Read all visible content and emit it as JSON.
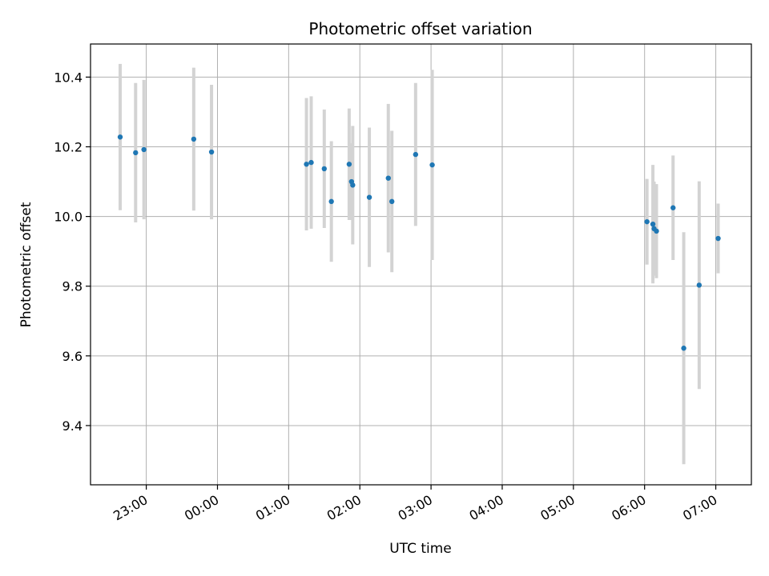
{
  "chart_data": {
    "type": "scatter",
    "title": "Photometric offset variation",
    "xlabel": "UTC time",
    "ylabel": "Photometric offset",
    "x_unit": "UTC",
    "x_tick_labels": [
      "23:00",
      "00:00",
      "01:00",
      "02:00",
      "03:00",
      "04:00",
      "05:00",
      "06:00",
      "07:00"
    ],
    "x_ticks": [
      "23:00",
      "24:00",
      "25:00",
      "26:00",
      "27:00",
      "28:00",
      "29:00",
      "30:00",
      "31:00"
    ],
    "xlim": [
      "22:13",
      "31:30"
    ],
    "y_ticks": [
      9.4,
      9.6,
      9.8,
      10.0,
      10.2,
      10.4
    ],
    "y_tick_labels": [
      "9.4",
      "9.6",
      "9.8",
      "10.0",
      "10.2",
      "10.4"
    ],
    "ylim": [
      9.23,
      10.495
    ],
    "grid": true,
    "point_color": "#1f77b4",
    "errorbar_color": "#d3d3d3",
    "series": [
      {
        "points": [
          {
            "x": "22:38",
            "y": 10.228,
            "err": 0.21
          },
          {
            "x": "22:51",
            "y": 10.183,
            "err": 0.2
          },
          {
            "x": "22:58",
            "y": 10.192,
            "err": 0.2
          },
          {
            "x": "23:40",
            "y": 10.222,
            "err": 0.205
          },
          {
            "x": "23:55",
            "y": 10.185,
            "err": 0.193
          },
          {
            "x": "25:15",
            "y": 10.15,
            "err": 0.19
          },
          {
            "x": "25:19",
            "y": 10.155,
            "err": 0.19
          },
          {
            "x": "25:30",
            "y": 10.137,
            "err": 0.17
          },
          {
            "x": "25:36",
            "y": 10.043,
            "err": 0.173
          },
          {
            "x": "25:51",
            "y": 10.15,
            "err": 0.16
          },
          {
            "x": "25:53",
            "y": 10.1,
            "err": 0.11
          },
          {
            "x": "25:54",
            "y": 10.09,
            "err": 0.17
          },
          {
            "x": "26:08",
            "y": 10.055,
            "err": 0.2
          },
          {
            "x": "26:24",
            "y": 10.11,
            "err": 0.213
          },
          {
            "x": "26:27",
            "y": 10.043,
            "err": 0.203
          },
          {
            "x": "26:47",
            "y": 10.178,
            "err": 0.205
          },
          {
            "x": "27:01",
            "y": 10.148,
            "err": 0.273
          },
          {
            "x": "30:02",
            "y": 9.985,
            "err": 0.123
          },
          {
            "x": "30:07",
            "y": 9.978,
            "err": 0.17
          },
          {
            "x": "30:08",
            "y": 9.965,
            "err": 0.135
          },
          {
            "x": "30:10",
            "y": 9.958,
            "err": 0.135
          },
          {
            "x": "30:24",
            "y": 10.025,
            "err": 0.15
          },
          {
            "x": "30:33",
            "y": 9.622,
            "err": 0.333
          },
          {
            "x": "30:46",
            "y": 9.803,
            "err": 0.298
          },
          {
            "x": "31:02",
            "y": 9.937,
            "err": 0.1
          }
        ]
      }
    ]
  }
}
